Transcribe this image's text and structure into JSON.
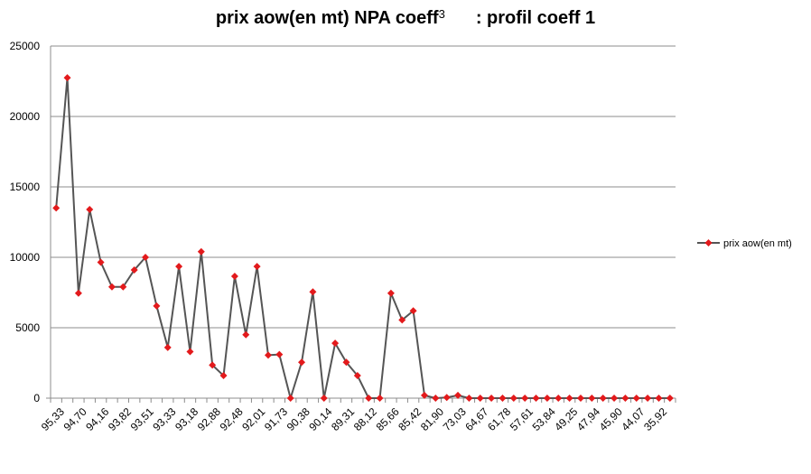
{
  "chart_data": {
    "type": "line",
    "title": {
      "part1": "prix aow(en mt) NPA coeff",
      "superscript": "3",
      "part2": ": profil coeff 1"
    },
    "xlabel": "",
    "ylabel": "",
    "ylim": [
      0,
      25000
    ],
    "yticks": [
      "0",
      "5000",
      "10000",
      "15000",
      "20000",
      "25000"
    ],
    "grid": "horizontal",
    "legend_position": "right",
    "line_color": "#555555",
    "marker_color": "#e31a1c",
    "x_tick_labels": [
      "95,33",
      "94,70",
      "94,16",
      "93,82",
      "93,51",
      "93,33",
      "93,18",
      "92,88",
      "92,48",
      "92,01",
      "91,73",
      "90,38",
      "90,14",
      "89,31",
      "88,12",
      "85,66",
      "85,42",
      "81,90",
      "73,03",
      "64,67",
      "61,78",
      "57,61",
      "53,84",
      "49,25",
      "47,94",
      "45,90",
      "44,07",
      "35,92"
    ],
    "series": [
      {
        "name": "prix aow(en mt)",
        "values": [
          13500,
          22750,
          7450,
          13400,
          9650,
          7900,
          7900,
          9100,
          10000,
          6550,
          3600,
          9350,
          3300,
          10400,
          2350,
          1600,
          8650,
          4500,
          9350,
          3050,
          3100,
          0,
          2550,
          7550,
          0,
          3900,
          2550,
          1600,
          0,
          0,
          7450,
          5550,
          6200,
          200,
          0,
          50,
          200,
          0,
          0,
          0,
          0,
          0,
          0,
          0,
          0,
          0,
          0,
          0,
          0,
          0,
          0,
          0,
          0,
          0,
          0,
          0
        ]
      }
    ]
  }
}
